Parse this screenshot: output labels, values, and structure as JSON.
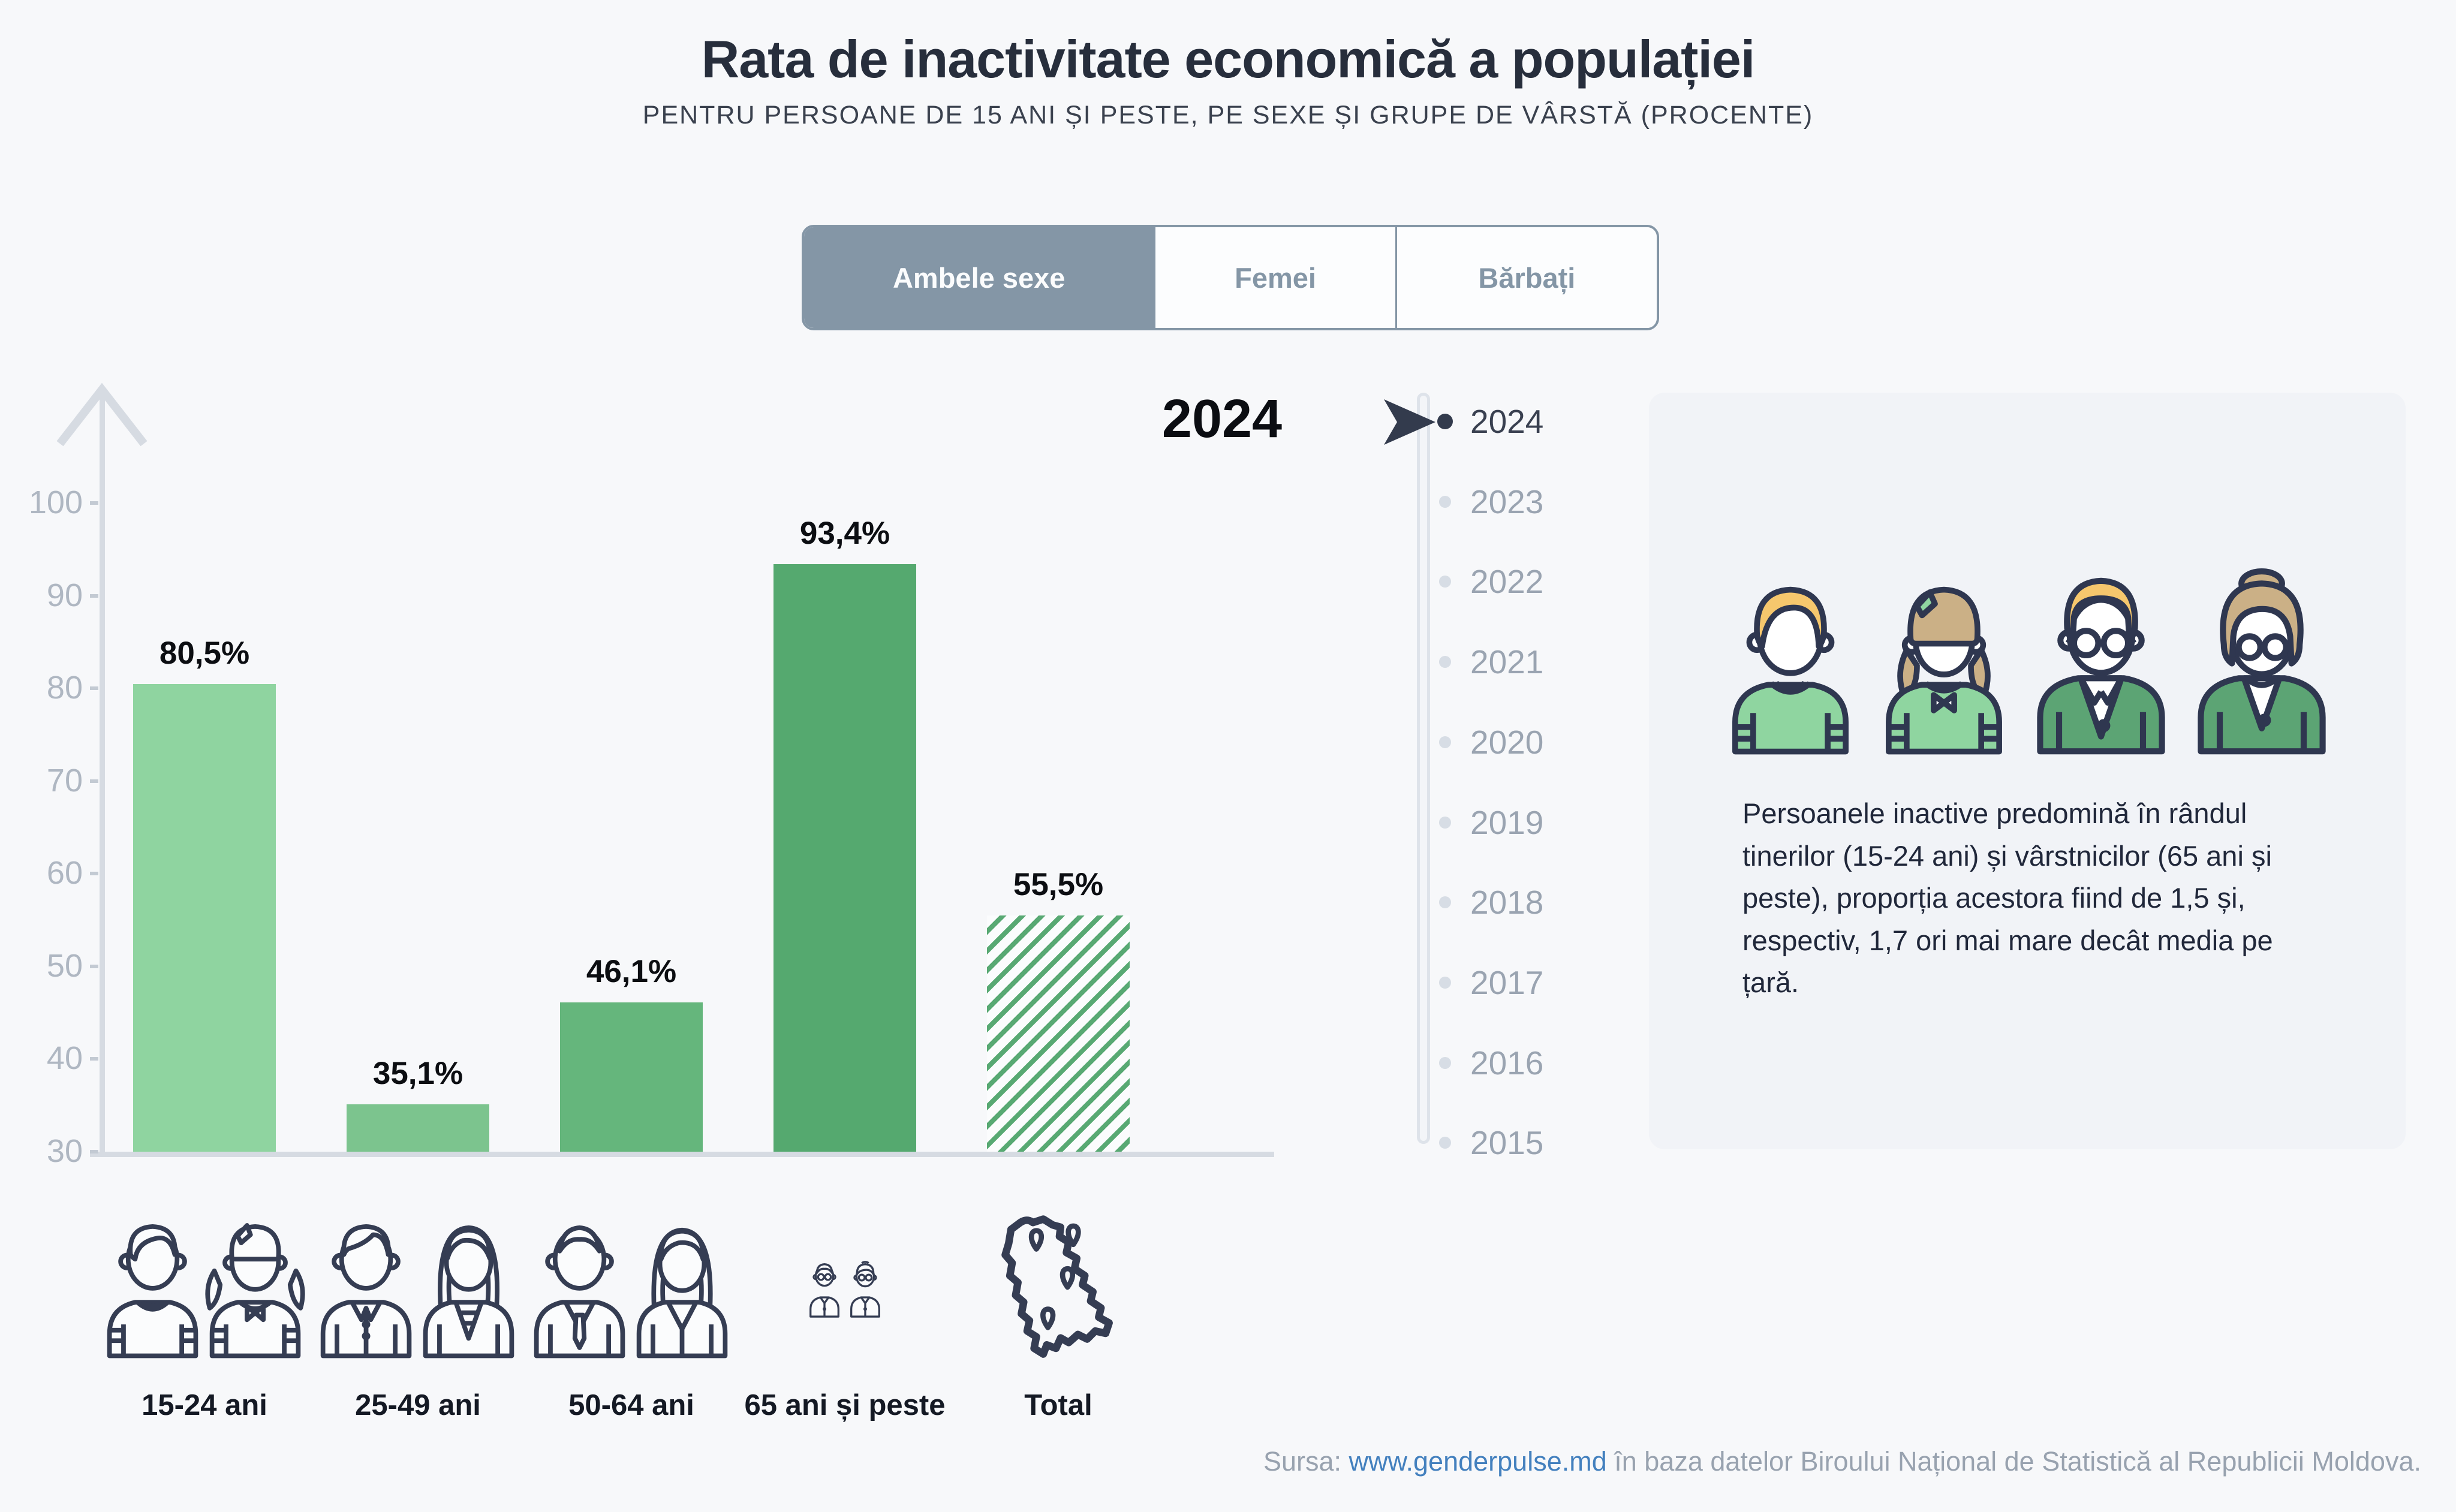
{
  "header": {
    "title": "Rata de inactivitate economică a populației",
    "subtitle": "PENTRU PERSOANE DE 15 ANI ȘI PESTE, PE SEXE ȘI GRUPE DE VÂRSTĂ (PROCENTE)"
  },
  "tabs": [
    {
      "label": "Ambele sexe",
      "selected": true
    },
    {
      "label": "Femei",
      "selected": false
    },
    {
      "label": "Bărbați",
      "selected": false
    }
  ],
  "chart_data": {
    "type": "bar",
    "title": "2024",
    "categories": [
      "15-24 ani",
      "25-49 ani",
      "50-64 ani",
      "65 ani și peste",
      "Total"
    ],
    "values": [
      80.5,
      35.1,
      46.1,
      93.4,
      55.5
    ],
    "value_labels": [
      "80,5%",
      "35,1%",
      "46,1%",
      "93,4%",
      "55,5%"
    ],
    "bar_colors": [
      "#8fd4a0",
      "#7cc48e",
      "#65b67c",
      "#55a96f",
      "hatch"
    ],
    "hatch_color": "#58a973",
    "ylim": [
      30,
      100
    ],
    "yticks": [
      100,
      90,
      80,
      70,
      60,
      50,
      40,
      30
    ],
    "xlabel": "",
    "ylabel": "",
    "grid": false,
    "legend": null
  },
  "categories": [
    {
      "label": "15-24 ani",
      "icon": "pair-young"
    },
    {
      "label": "25-49 ani",
      "icon": "pair-adult"
    },
    {
      "label": "50-64 ani",
      "icon": "pair-mature"
    },
    {
      "label": "65 ani și peste",
      "icon": "pair-elderly"
    },
    {
      "label": "Total",
      "icon": "map-moldova"
    }
  ],
  "timeline": {
    "years": [
      "2024",
      "2023",
      "2022",
      "2021",
      "2020",
      "2019",
      "2018",
      "2017",
      "2016",
      "2015"
    ],
    "selected": "2024"
  },
  "big_year": "2024",
  "infobox": {
    "text": "Persoanele inactive predomină în rândul tinerilor (15-24 ani) și vârstnicilor (65 ani și peste), proporția acestora fiind de 1,5 și, respectiv, 1,7 ori mai mare decât media pe țară.",
    "avatar_icons": [
      "boy-avatar",
      "girl-avatar",
      "man-avatar",
      "woman-avatar"
    ]
  },
  "footer": {
    "prefix": "Sursa: ",
    "link": "www.genderpulse.md",
    "suffix": " în baza datelor Biroului Național de Statistică al Republicii Moldova."
  },
  "colors": {
    "background": "#f7f8fa",
    "title": "#272e3c",
    "tab_accent": "#8496a6",
    "axis": "#d6dbe2",
    "tick_label": "#afb7c2",
    "value_label": "#0c0e12",
    "timeline_selected": "#394050",
    "timeline_unselected": "#9aa4b1",
    "timeline_cursor": "#333b4d",
    "infobox_bg": "#f1f3f7",
    "footer_text": "#98a2af",
    "footer_link": "#4380be",
    "icon_outline": "#353d53"
  }
}
